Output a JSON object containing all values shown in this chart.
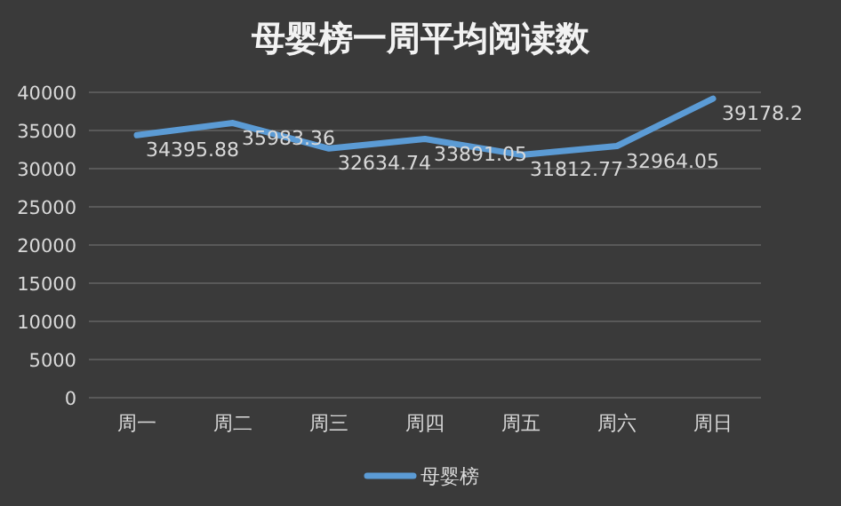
{
  "chart_data": {
    "type": "line",
    "title": "母婴榜一周平均阅读数",
    "categories": [
      "周一",
      "周二",
      "周三",
      "周四",
      "周五",
      "周六",
      "周日"
    ],
    "series": [
      {
        "name": "母婴榜",
        "color": "#5b9bd5",
        "values": [
          34395.88,
          35983.36,
          32634.74,
          33891.05,
          31812.77,
          32964.05,
          39178.2
        ]
      }
    ],
    "ylim": [
      0,
      40000
    ],
    "yticks": [
      0,
      5000,
      10000,
      15000,
      20000,
      25000,
      30000,
      35000,
      40000
    ],
    "grid": "y",
    "legend": "bottom",
    "data_labels": true,
    "marker": "none",
    "line_style": "solid"
  }
}
